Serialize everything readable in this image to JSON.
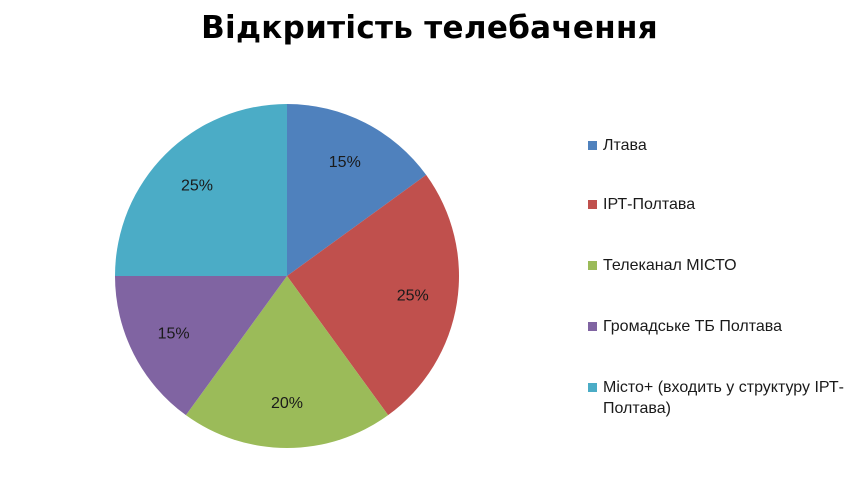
{
  "chart_data": {
    "type": "pie",
    "title": "Відкритість телебачення",
    "categories": [
      "Лтава",
      "ІРТ-Полтава",
      "Телеканал МІСТО",
      "Громадське ТБ Полтава",
      "Місто+ (входить у структуру ІРТ-Полтава)"
    ],
    "values": [
      15,
      25,
      20,
      15,
      25
    ],
    "data_labels": [
      "15%",
      "25%",
      "20%",
      "15%",
      "25%"
    ],
    "colors": [
      "#4F81BD",
      "#C0504D",
      "#9BBB59",
      "#8064A2",
      "#4BACC6"
    ],
    "legend_position": "right",
    "start_angle": "12 o'clock",
    "direction": "clockwise"
  }
}
